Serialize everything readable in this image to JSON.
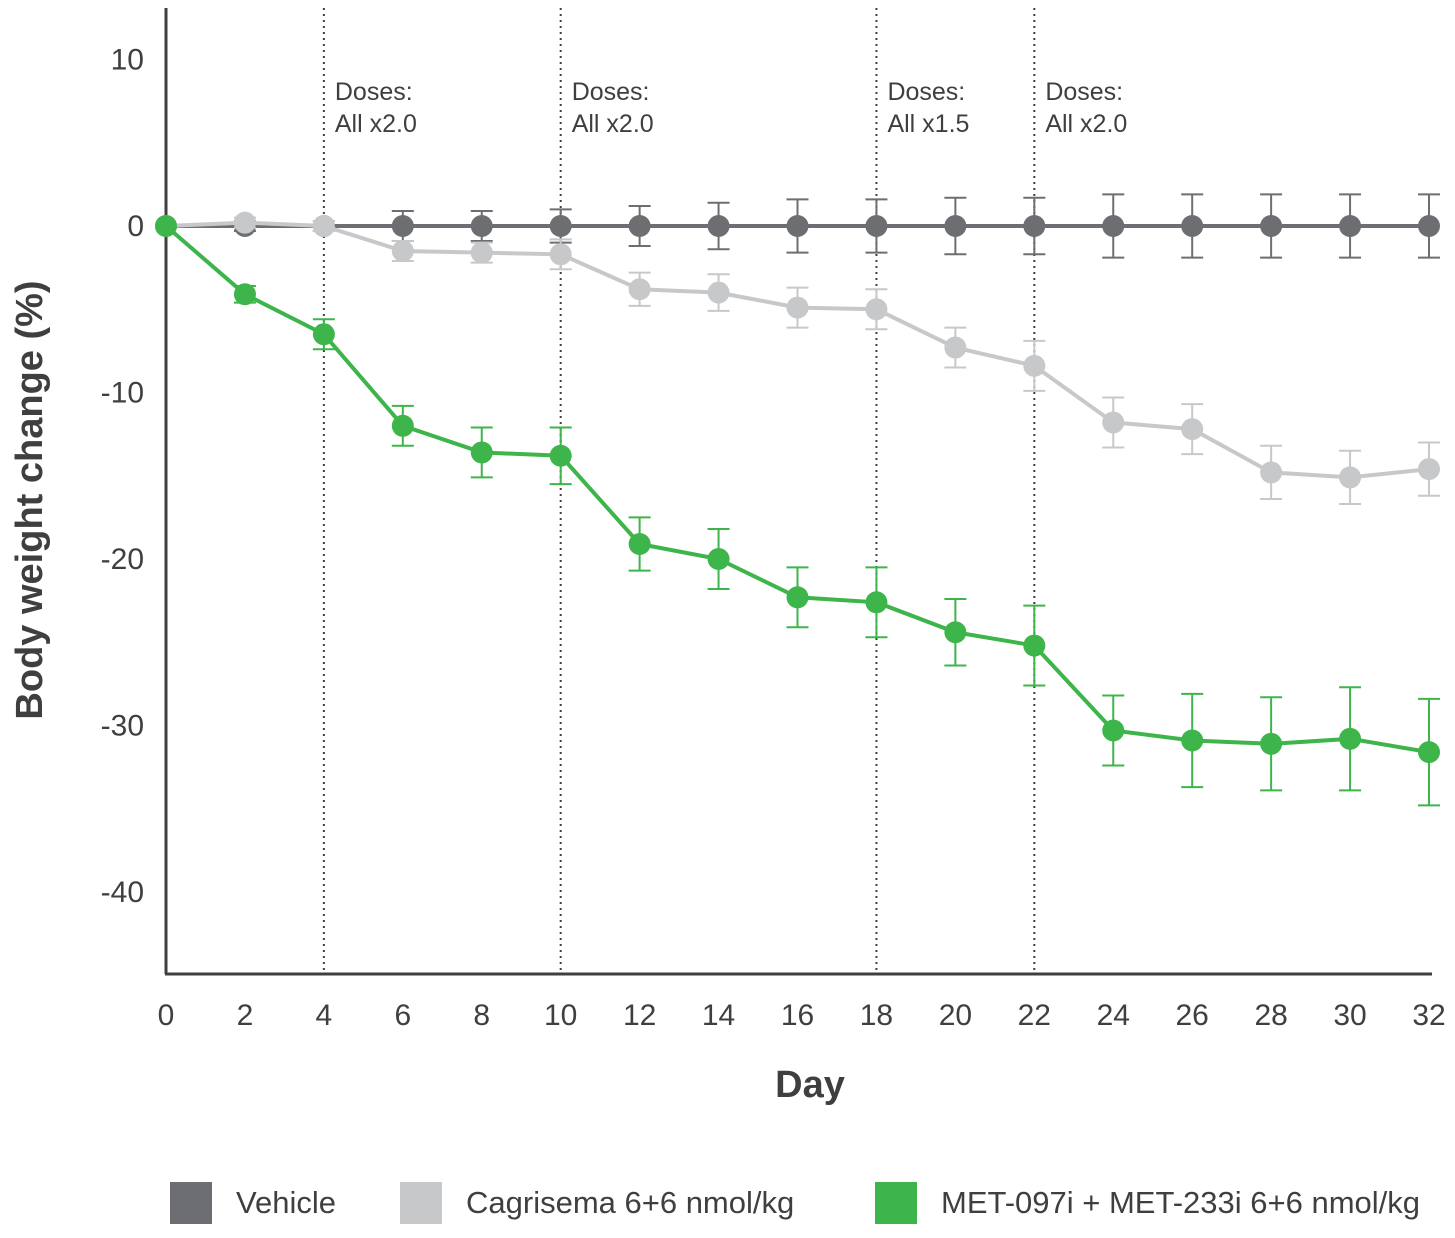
{
  "chart_data": {
    "type": "line",
    "title": "",
    "xlabel": "Day",
    "ylabel": "Body weight change (%)",
    "x": [
      0,
      2,
      4,
      6,
      8,
      10,
      12,
      14,
      16,
      18,
      20,
      22,
      24,
      26,
      28,
      30,
      32
    ],
    "xticks": [
      "0",
      "2",
      "4",
      "6",
      "8",
      "10",
      "12",
      "14",
      "16",
      "18",
      "20",
      "22",
      "24",
      "26",
      "28",
      "30",
      "32"
    ],
    "yticks": [
      "10",
      "0",
      "-10",
      "-20",
      "-30",
      "-40"
    ],
    "xlim": [
      0,
      32
    ],
    "ylim": [
      -45,
      13
    ],
    "grid": false,
    "legend_position": "bottom",
    "series": [
      {
        "name": "Vehicle",
        "color": "#6d6e71",
        "values": [
          0,
          0,
          0,
          0,
          0,
          0,
          0,
          0,
          0,
          0,
          0,
          0,
          0,
          0,
          0,
          0,
          0
        ],
        "errors": [
          0,
          0.3,
          0.3,
          0.9,
          0.9,
          1.0,
          1.2,
          1.4,
          1.6,
          1.6,
          1.7,
          1.7,
          1.9,
          1.9,
          1.9,
          1.9,
          1.9
        ]
      },
      {
        "name": "Cagrisema 6+6 nmol/kg",
        "color": "#c7c8ca",
        "values": [
          0,
          0.2,
          0,
          -1.5,
          -1.6,
          -1.7,
          -3.8,
          -4.0,
          -4.9,
          -5.0,
          -7.3,
          -8.4,
          -11.8,
          -12.2,
          -14.8,
          -15.1,
          -14.6
        ],
        "errors": [
          0,
          0.3,
          0.3,
          0.6,
          0.6,
          0.9,
          1.0,
          1.1,
          1.2,
          1.2,
          1.2,
          1.5,
          1.5,
          1.5,
          1.6,
          1.6,
          1.6
        ]
      },
      {
        "name": "MET-097i + MET-233i 6+6 nmol/kg",
        "color": "#3db54a",
        "values": [
          0,
          -4.1,
          -6.5,
          -12.0,
          -13.6,
          -13.8,
          -19.1,
          -20.0,
          -22.3,
          -22.6,
          -24.4,
          -25.2,
          -30.3,
          -30.9,
          -31.1,
          -30.8,
          -31.6
        ],
        "errors": [
          0,
          0.5,
          0.9,
          1.2,
          1.5,
          1.7,
          1.6,
          1.8,
          1.8,
          2.1,
          2.0,
          2.4,
          2.1,
          2.8,
          2.8,
          3.1,
          3.2
        ]
      }
    ],
    "annotations": [
      {
        "x": 4,
        "line1": "Doses:",
        "line2": "All x2.0"
      },
      {
        "x": 10,
        "line1": "Doses:",
        "line2": "All x2.0"
      },
      {
        "x": 18,
        "line1": "Doses:",
        "line2": "All x1.5"
      },
      {
        "x": 22,
        "line1": "Doses:",
        "line2": "All x2.0"
      }
    ]
  },
  "legend": {
    "items": [
      {
        "label": "Vehicle",
        "color": "#6d6e71"
      },
      {
        "label": "Cagrisema 6+6 nmol/kg",
        "color": "#c7c8ca"
      },
      {
        "label": "MET-097i + MET-233i 6+6 nmol/kg",
        "color": "#3db54a"
      }
    ]
  }
}
